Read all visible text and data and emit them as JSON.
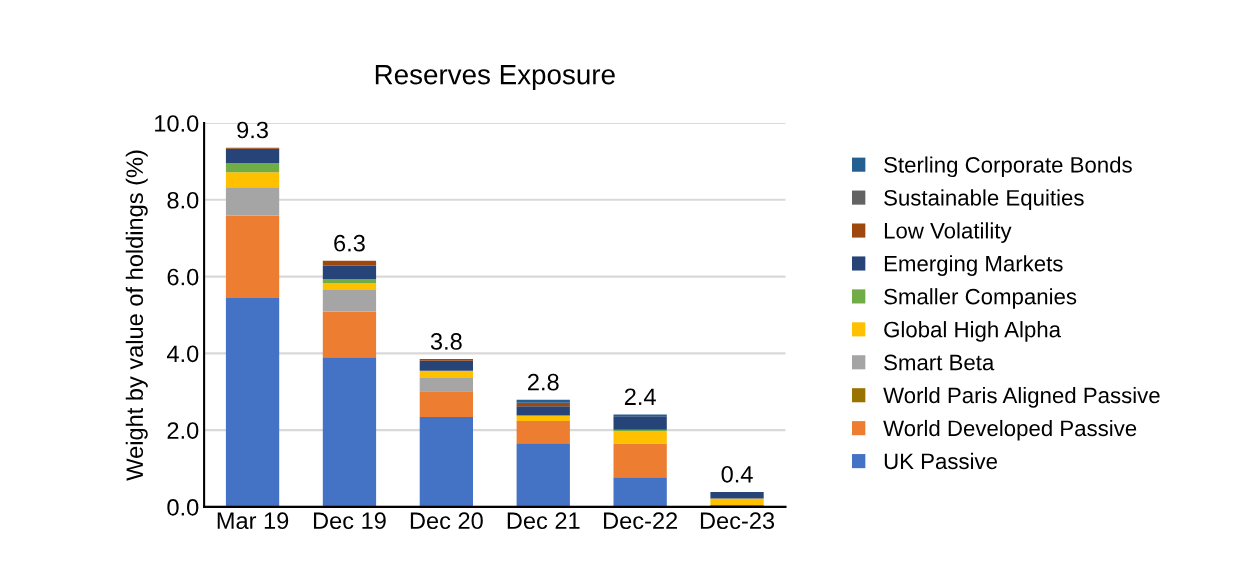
{
  "chart_data": {
    "type": "bar",
    "title": "Reserves Exposure",
    "ylabel": "Weight by value of holdings (%)",
    "categories": [
      "Mar 19",
      "Dec 19",
      "Dec 20",
      "Dec 21",
      "Dec-22",
      "Dec-23"
    ],
    "stacked": true,
    "grid": "y",
    "legend": "right",
    "ylim": [
      0,
      10
    ],
    "yticks": [
      {
        "value": 0,
        "label": "0.0"
      },
      {
        "value": 2,
        "label": "2.0"
      },
      {
        "value": 4,
        "label": "4.0"
      },
      {
        "value": 6,
        "label": "6.0"
      },
      {
        "value": 8,
        "label": "8.0"
      },
      {
        "value": 10,
        "label": "10.0"
      }
    ],
    "series": [
      {
        "name": "UK Passive",
        "color": "#4472c4",
        "values": [
          5.44,
          3.9,
          2.34,
          1.66,
          0.77,
          0
        ]
      },
      {
        "name": "World Developed Passive",
        "color": "#ed7d31",
        "values": [
          2.15,
          1.19,
          0.67,
          0.58,
          0.88,
          0
        ]
      },
      {
        "name": "World Paris Aligned Passive",
        "color": "#997300",
        "values": [
          0,
          0,
          0,
          0,
          0,
          0.05
        ]
      },
      {
        "name": "Smart Beta",
        "color": "#a5a5a5",
        "values": [
          0.74,
          0.56,
          0.35,
          0,
          0,
          0
        ]
      },
      {
        "name": "Global High Alpha",
        "color": "#ffc000",
        "values": [
          0.39,
          0.18,
          0.19,
          0.13,
          0.33,
          0.17
        ]
      },
      {
        "name": "Smaller Companies",
        "color": "#70ad47",
        "values": [
          0.24,
          0.1,
          0,
          0.02,
          0.03,
          0
        ]
      },
      {
        "name": "Emerging Markets",
        "color": "#264478",
        "values": [
          0.37,
          0.35,
          0.26,
          0.23,
          0.35,
          0.17
        ]
      },
      {
        "name": "Low Volatility",
        "color": "#9e480e",
        "values": [
          0.03,
          0.13,
          0.04,
          0.09,
          0,
          0
        ]
      },
      {
        "name": "Sustainable Equities",
        "color": "#636363",
        "values": [
          0,
          0,
          0,
          0,
          0,
          0
        ]
      },
      {
        "name": "Sterling Corporate Bonds",
        "color": "#255e91",
        "values": [
          0,
          0,
          0,
          0.08,
          0.05,
          0
        ]
      }
    ],
    "totals": [
      "9.3",
      "6.3",
      "3.8",
      "2.8",
      "2.4",
      "0.4"
    ]
  }
}
